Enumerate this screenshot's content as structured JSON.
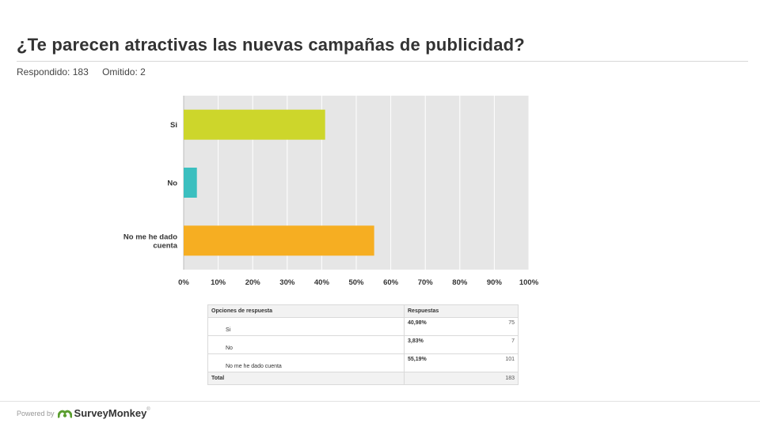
{
  "header": {
    "question": "¿Te parecen atractivas las nuevas campañas de publicidad?",
    "answered": "Respondido: 183",
    "skipped": "Omitido: 2"
  },
  "chart_data": {
    "type": "bar",
    "orientation": "horizontal",
    "categories": [
      "Si",
      "No",
      "No me he dado cuenta"
    ],
    "category_lines": [
      [
        "Si"
      ],
      [
        "No"
      ],
      [
        "No me he dado",
        "cuenta"
      ]
    ],
    "values": [
      40.98,
      3.83,
      55.19
    ],
    "colors": [
      "#cdd62b",
      "#3bbfbf",
      "#f6ae22"
    ],
    "xlim": [
      0,
      100
    ],
    "ticks": [
      0,
      10,
      20,
      30,
      40,
      50,
      60,
      70,
      80,
      90,
      100
    ],
    "tick_labels": [
      "0%",
      "10%",
      "20%",
      "30%",
      "40%",
      "50%",
      "60%",
      "70%",
      "80%",
      "90%",
      "100%"
    ],
    "grid": true,
    "xlabel": "",
    "ylabel": "",
    "title": ""
  },
  "table": {
    "headers": [
      "Opciones de respuesta",
      "Respuestas"
    ],
    "rows": [
      {
        "option": "Si",
        "percent": "40,98%",
        "count": "75"
      },
      {
        "option": "No",
        "percent": "3,83%",
        "count": "7"
      },
      {
        "option": "No me he dado cuenta",
        "percent": "55,19%",
        "count": "101"
      }
    ],
    "total_label": "Total",
    "total_count": "183"
  },
  "footer": {
    "powered_by": "Powered by",
    "brand": "SurveyMonkey",
    "trademark": "®",
    "brand_icon": "surveymonkey-logo-icon"
  }
}
